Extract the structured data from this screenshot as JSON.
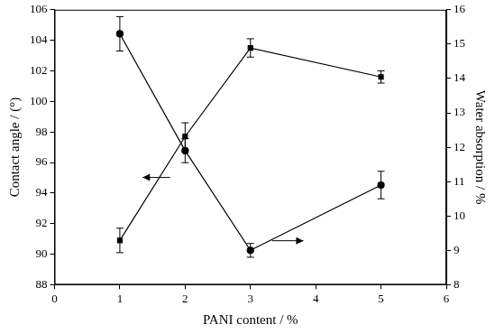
{
  "chart_data": {
    "type": "line",
    "x_label": "PANI content / %",
    "y_label": "Contact angle / (°)",
    "y2_label": "Water absorption / %",
    "xlim": [
      0,
      6
    ],
    "xticks": [
      0,
      1,
      2,
      3,
      4,
      5,
      6
    ],
    "ylim": [
      88,
      106
    ],
    "yticks": [
      88,
      90,
      92,
      94,
      96,
      98,
      100,
      102,
      104,
      106
    ],
    "y2lim": [
      8,
      16
    ],
    "y2ticks": [
      8,
      9,
      10,
      11,
      12,
      13,
      14,
      15,
      16
    ],
    "grid": false,
    "series": [
      {
        "name": "Contact angle",
        "color": "#000000",
        "marker": "square",
        "line_style": "solid",
        "x": [
          1,
          2,
          3,
          5
        ],
        "values": [
          90.9,
          97.7,
          103.5,
          101.6
        ],
        "errors": [
          0.8,
          0.9,
          0.6,
          0.4
        ]
      },
      {
        "name": "Water absorption",
        "color": "#000000",
        "marker": "circle",
        "line_style": "solid",
        "axis": "y2",
        "x": [
          1,
          2,
          3,
          5
        ],
        "values": [
          15.3,
          11.9,
          9.0,
          10.9
        ],
        "errors": [
          0.5,
          0.35,
          0.2,
          0.4
        ]
      }
    ]
  }
}
